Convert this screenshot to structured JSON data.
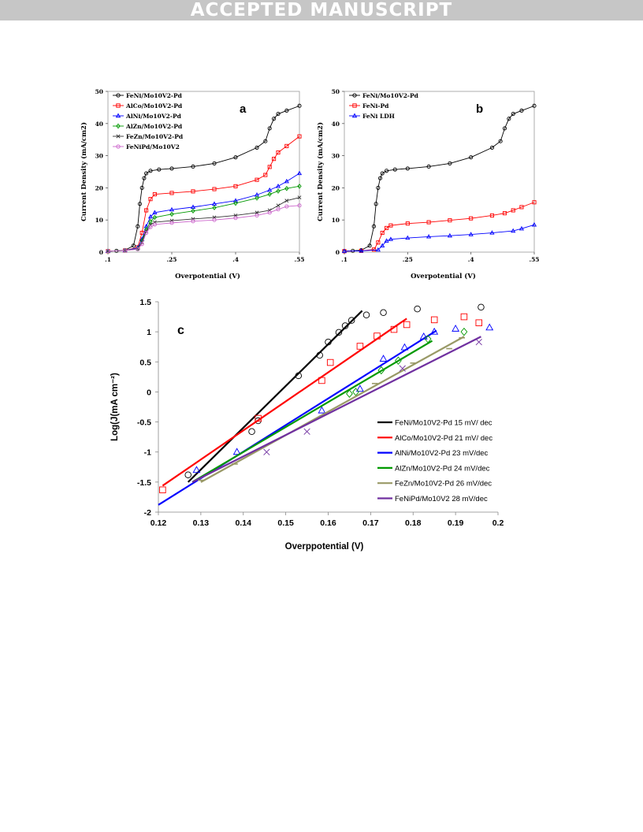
{
  "banner": "ACCEPTED MANUSCRIPT",
  "chart_data": [
    {
      "type": "line",
      "panel": "a",
      "xlabel": "Overpotential (V)",
      "ylabel": "Current Density (mA/cm2)",
      "xlim": [
        0.1,
        0.55
      ],
      "ylim": [
        0,
        50
      ],
      "xticks": [
        0.1,
        0.25,
        0.4,
        0.55
      ],
      "yticks": [
        0,
        10,
        20,
        30,
        40,
        50
      ],
      "legend_position": "top-left",
      "series": [
        {
          "name": "FeNi/Mo10V2-Pd",
          "color": "#000000",
          "marker": "circle",
          "points": [
            [
              0.1,
              0.3
            ],
            [
              0.12,
              0.4
            ],
            [
              0.14,
              0.6
            ],
            [
              0.16,
              2
            ],
            [
              0.17,
              8
            ],
            [
              0.175,
              15
            ],
            [
              0.18,
              20
            ],
            [
              0.185,
              23
            ],
            [
              0.19,
              24.5
            ],
            [
              0.2,
              25.3
            ],
            [
              0.22,
              25.7
            ],
            [
              0.25,
              26
            ],
            [
              0.3,
              26.6
            ],
            [
              0.35,
              27.6
            ],
            [
              0.4,
              29.5
            ],
            [
              0.45,
              32.5
            ],
            [
              0.47,
              34.5
            ],
            [
              0.48,
              38.5
            ],
            [
              0.49,
              41.5
            ],
            [
              0.5,
              43
            ],
            [
              0.52,
              44
            ],
            [
              0.55,
              45.5
            ]
          ]
        },
        {
          "name": "AlCo/Mo10V2-Pd",
          "color": "#ff0000",
          "marker": "square",
          "points": [
            [
              0.1,
              0.3
            ],
            [
              0.14,
              0.5
            ],
            [
              0.17,
              1.5
            ],
            [
              0.18,
              6
            ],
            [
              0.19,
              13
            ],
            [
              0.2,
              16.5
            ],
            [
              0.21,
              18
            ],
            [
              0.25,
              18.4
            ],
            [
              0.3,
              18.9
            ],
            [
              0.35,
              19.6
            ],
            [
              0.4,
              20.5
            ],
            [
              0.45,
              22.5
            ],
            [
              0.47,
              24
            ],
            [
              0.48,
              26.5
            ],
            [
              0.49,
              29
            ],
            [
              0.5,
              31
            ],
            [
              0.52,
              33
            ],
            [
              0.55,
              36
            ]
          ]
        },
        {
          "name": "AlNi/Mo10V2-Pd",
          "color": "#0000ff",
          "marker": "triangle",
          "points": [
            [
              0.1,
              0.3
            ],
            [
              0.14,
              0.5
            ],
            [
              0.17,
              1.3
            ],
            [
              0.18,
              4
            ],
            [
              0.19,
              8
            ],
            [
              0.2,
              11
            ],
            [
              0.21,
              12.3
            ],
            [
              0.25,
              13.2
            ],
            [
              0.3,
              14
            ],
            [
              0.35,
              15
            ],
            [
              0.4,
              16
            ],
            [
              0.45,
              17.8
            ],
            [
              0.48,
              19.3
            ],
            [
              0.5,
              20.5
            ],
            [
              0.52,
              22
            ],
            [
              0.55,
              24.5
            ]
          ]
        },
        {
          "name": "AlZn/Mo10V2-Pd",
          "color": "#009900",
          "marker": "diamond",
          "points": [
            [
              0.1,
              0.3
            ],
            [
              0.14,
              0.5
            ],
            [
              0.17,
              1
            ],
            [
              0.18,
              3.5
            ],
            [
              0.19,
              7
            ],
            [
              0.2,
              9.5
            ],
            [
              0.21,
              10.8
            ],
            [
              0.25,
              11.8
            ],
            [
              0.3,
              12.8
            ],
            [
              0.35,
              13.8
            ],
            [
              0.4,
              15.2
            ],
            [
              0.45,
              16.8
            ],
            [
              0.48,
              18
            ],
            [
              0.5,
              19
            ],
            [
              0.52,
              19.8
            ],
            [
              0.55,
              20.5
            ]
          ]
        },
        {
          "name": "FeZn/Mo10V2-Pd",
          "color": "#333333",
          "marker": "cross",
          "points": [
            [
              0.1,
              0.3
            ],
            [
              0.14,
              0.5
            ],
            [
              0.17,
              1
            ],
            [
              0.18,
              3
            ],
            [
              0.19,
              6.5
            ],
            [
              0.2,
              8.5
            ],
            [
              0.21,
              9.3
            ],
            [
              0.25,
              9.8
            ],
            [
              0.3,
              10.3
            ],
            [
              0.35,
              10.8
            ],
            [
              0.4,
              11.4
            ],
            [
              0.45,
              12.3
            ],
            [
              0.48,
              13
            ],
            [
              0.5,
              14.5
            ],
            [
              0.52,
              16
            ],
            [
              0.55,
              17
            ]
          ]
        },
        {
          "name": "FeNiPd/Mo10V2",
          "color": "#cc66cc",
          "marker": "circle",
          "points": [
            [
              0.1,
              0.3
            ],
            [
              0.14,
              0.5
            ],
            [
              0.17,
              0.9
            ],
            [
              0.18,
              2.5
            ],
            [
              0.19,
              6
            ],
            [
              0.2,
              7.8
            ],
            [
              0.21,
              8.6
            ],
            [
              0.25,
              9.1
            ],
            [
              0.3,
              9.6
            ],
            [
              0.35,
              10
            ],
            [
              0.4,
              10.6
            ],
            [
              0.45,
              11.4
            ],
            [
              0.48,
              12.3
            ],
            [
              0.5,
              13.3
            ],
            [
              0.52,
              14.2
            ],
            [
              0.55,
              14.5
            ]
          ]
        }
      ]
    },
    {
      "type": "line",
      "panel": "b",
      "xlabel": "Overpotential (V)",
      "ylabel": "Current Density (mA/cm2)",
      "xlim": [
        0.1,
        0.55
      ],
      "ylim": [
        0,
        50
      ],
      "xticks": [
        0.1,
        0.25,
        0.4,
        0.55
      ],
      "yticks": [
        0,
        10,
        20,
        30,
        40,
        50
      ],
      "legend_position": "top-left",
      "series": [
        {
          "name": "FeNi/Mo10V2-Pd",
          "color": "#000000",
          "marker": "circle",
          "points": [
            [
              0.1,
              0.3
            ],
            [
              0.12,
              0.4
            ],
            [
              0.14,
              0.6
            ],
            [
              0.16,
              2
            ],
            [
              0.17,
              8
            ],
            [
              0.175,
              15
            ],
            [
              0.18,
              20
            ],
            [
              0.185,
              23
            ],
            [
              0.19,
              24.5
            ],
            [
              0.2,
              25.3
            ],
            [
              0.22,
              25.7
            ],
            [
              0.25,
              26
            ],
            [
              0.3,
              26.6
            ],
            [
              0.35,
              27.6
            ],
            [
              0.4,
              29.5
            ],
            [
              0.45,
              32.5
            ],
            [
              0.47,
              34.5
            ],
            [
              0.48,
              38.5
            ],
            [
              0.49,
              41.5
            ],
            [
              0.5,
              43
            ],
            [
              0.52,
              44
            ],
            [
              0.55,
              45.5
            ]
          ]
        },
        {
          "name": "FeNi-Pd",
          "color": "#ff0000",
          "marker": "square",
          "points": [
            [
              0.1,
              0.3
            ],
            [
              0.14,
              0.4
            ],
            [
              0.17,
              0.8
            ],
            [
              0.18,
              3
            ],
            [
              0.19,
              6
            ],
            [
              0.2,
              7.5
            ],
            [
              0.21,
              8.3
            ],
            [
              0.25,
              8.9
            ],
            [
              0.3,
              9.3
            ],
            [
              0.35,
              9.9
            ],
            [
              0.4,
              10.5
            ],
            [
              0.45,
              11.4
            ],
            [
              0.48,
              12.1
            ],
            [
              0.5,
              13
            ],
            [
              0.52,
              14
            ],
            [
              0.55,
              15.5
            ]
          ]
        },
        {
          "name": "FeNi LDH",
          "color": "#0000ff",
          "marker": "triangle",
          "points": [
            [
              0.1,
              0.3
            ],
            [
              0.14,
              0.4
            ],
            [
              0.18,
              0.7
            ],
            [
              0.19,
              2
            ],
            [
              0.2,
              3.5
            ],
            [
              0.21,
              4
            ],
            [
              0.25,
              4.4
            ],
            [
              0.3,
              4.8
            ],
            [
              0.35,
              5.1
            ],
            [
              0.4,
              5.5
            ],
            [
              0.45,
              6
            ],
            [
              0.5,
              6.6
            ],
            [
              0.52,
              7.3
            ],
            [
              0.55,
              8.5
            ]
          ]
        }
      ]
    },
    {
      "type": "scatter",
      "panel": "c",
      "xlabel": "Overppotential (V)",
      "ylabel": "Log(J(mA cm⁻²)",
      "xlim": [
        0.12,
        0.2
      ],
      "ylim": [
        -2,
        1.5
      ],
      "xticks": [
        0.12,
        0.13,
        0.14,
        0.15,
        0.16,
        0.17,
        0.18,
        0.19,
        0.2
      ],
      "yticks": [
        -2,
        -1.5,
        -1,
        -0.5,
        0,
        0.5,
        1,
        1.5
      ],
      "legend_position": "bottom-right",
      "series": [
        {
          "name": "FeNi/Mo10V2-Pd  15 mV/ dec",
          "color": "#000000",
          "marker": "circle",
          "points": [
            [
              0.127,
              -1.38
            ],
            [
              0.142,
              -0.66
            ],
            [
              0.1435,
              -0.48
            ],
            [
              0.153,
              0.27
            ],
            [
              0.158,
              0.61
            ],
            [
              0.16,
              0.83
            ],
            [
              0.1625,
              0.99
            ],
            [
              0.164,
              1.1
            ],
            [
              0.1655,
              1.19
            ],
            [
              0.169,
              1.28
            ],
            [
              0.173,
              1.32
            ],
            [
              0.181,
              1.38
            ],
            [
              0.196,
              1.41
            ]
          ],
          "fit": [
            [
              0.127,
              -1.5
            ],
            [
              0.168,
              1.35
            ]
          ]
        },
        {
          "name": "AlCo/Mo10V2-Pd  21 mV/ dec",
          "color": "#ff0000",
          "marker": "square",
          "points": [
            [
              0.121,
              -1.63
            ],
            [
              0.1435,
              -0.44
            ],
            [
              0.1585,
              0.19
            ],
            [
              0.1605,
              0.49
            ],
            [
              0.1675,
              0.76
            ],
            [
              0.1715,
              0.93
            ],
            [
              0.1755,
              1.04
            ],
            [
              0.1785,
              1.12
            ],
            [
              0.185,
              1.2
            ],
            [
              0.192,
              1.25
            ],
            [
              0.1955,
              1.15
            ]
          ],
          "fit": [
            [
              0.121,
              -1.56
            ],
            [
              0.1785,
              1.22
            ]
          ]
        },
        {
          "name": "AlNi/Mo10V2-Pd  23 mV/dec",
          "color": "#0000ff",
          "marker": "triangle",
          "points": [
            [
              0.129,
              -1.3
            ],
            [
              0.1385,
              -1.0
            ],
            [
              0.1585,
              -0.31
            ],
            [
              0.1675,
              0.05
            ],
            [
              0.173,
              0.55
            ],
            [
              0.178,
              0.74
            ],
            [
              0.1825,
              0.92
            ],
            [
              0.185,
              1.0
            ],
            [
              0.19,
              1.05
            ],
            [
              0.198,
              1.07
            ]
          ],
          "fit": [
            [
              0.12,
              -1.88
            ],
            [
              0.1855,
              1.02
            ]
          ]
        },
        {
          "name": "AlZn/Mo10V2-Pd  24 mV/dec",
          "color": "#009900",
          "marker": "diamond",
          "points": [
            [
              0.165,
              -0.03
            ],
            [
              0.1665,
              0.0
            ],
            [
              0.1725,
              0.36
            ],
            [
              0.1765,
              0.52
            ],
            [
              0.1835,
              0.88
            ],
            [
              0.192,
              1.0
            ]
          ],
          "fit": [
            [
              0.128,
              -1.5
            ],
            [
              0.1845,
              0.85
            ]
          ]
        },
        {
          "name": "FeZn/Mo10V2-Pd  26 mV/dec",
          "color": "#999966",
          "marker": "dash",
          "points": [
            [
              0.13,
              -1.47
            ],
            [
              0.138,
              -1.2
            ],
            [
              0.171,
              0.14
            ],
            [
              0.18,
              0.48
            ],
            [
              0.1885,
              0.72
            ],
            [
              0.1915,
              0.9
            ]
          ],
          "fit": [
            [
              0.13,
              -1.5
            ],
            [
              0.192,
              0.92
            ]
          ]
        },
        {
          "name": "FeNiPd/Mo10V2  28 mV/dec",
          "color": "#7030a0",
          "marker": "cross",
          "points": [
            [
              0.1455,
              -1.0
            ],
            [
              0.155,
              -0.66
            ],
            [
              0.1775,
              0.39
            ],
            [
              0.1955,
              0.83
            ]
          ],
          "fit": [
            [
              0.128,
              -1.5
            ],
            [
              0.196,
              0.92
            ]
          ]
        }
      ]
    }
  ]
}
